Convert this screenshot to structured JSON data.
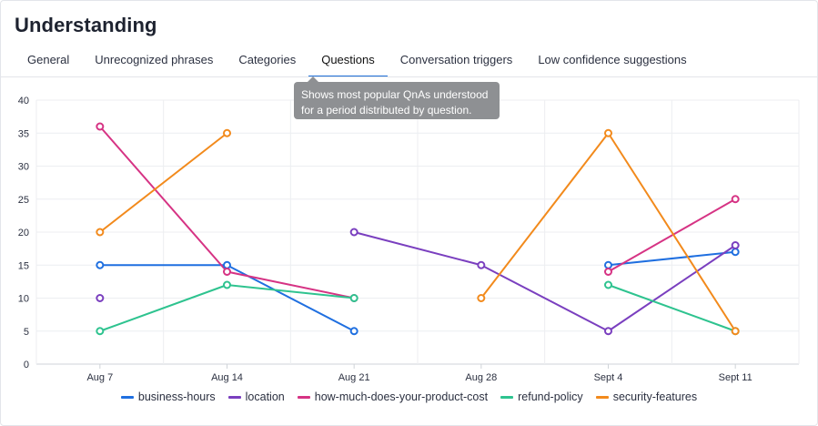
{
  "page": {
    "title": "Understanding",
    "tabs": [
      {
        "label": "General"
      },
      {
        "label": "Unrecognized phrases"
      },
      {
        "label": "Categories"
      },
      {
        "label": "Questions",
        "active": true
      },
      {
        "label": "Conversation triggers"
      },
      {
        "label": "Low confidence suggestions"
      }
    ],
    "tooltip": {
      "line1": "Shows most popular QnAs understood",
      "line2": "for a period distributed by question."
    }
  },
  "chart_data": {
    "type": "line",
    "title": "",
    "xlabel": "",
    "ylabel": "",
    "categories": [
      "Aug 7",
      "Aug 14",
      "Aug 21",
      "Aug 28",
      "Sept 4",
      "Sept 11"
    ],
    "ylim": [
      0,
      40
    ],
    "yticks": [
      0,
      5,
      10,
      15,
      20,
      25,
      30,
      35,
      40
    ],
    "grid": true,
    "legend_position": "bottom",
    "series": [
      {
        "name": "business-hours",
        "color": "#1f6fe0",
        "values": [
          15,
          15,
          5,
          null,
          15,
          17
        ]
      },
      {
        "name": "location",
        "color": "#7a3fbf",
        "values": [
          10,
          null,
          20,
          15,
          5,
          18
        ]
      },
      {
        "name": "how-much-does-your-product-cost",
        "color": "#d63384",
        "values": [
          36,
          14,
          10,
          null,
          14,
          25
        ]
      },
      {
        "name": "refund-policy",
        "color": "#2ec38f",
        "values": [
          5,
          12,
          10,
          null,
          12,
          5
        ]
      },
      {
        "name": "security-features",
        "color": "#f28a1c",
        "values": [
          20,
          35,
          null,
          10,
          35,
          5
        ]
      }
    ]
  }
}
